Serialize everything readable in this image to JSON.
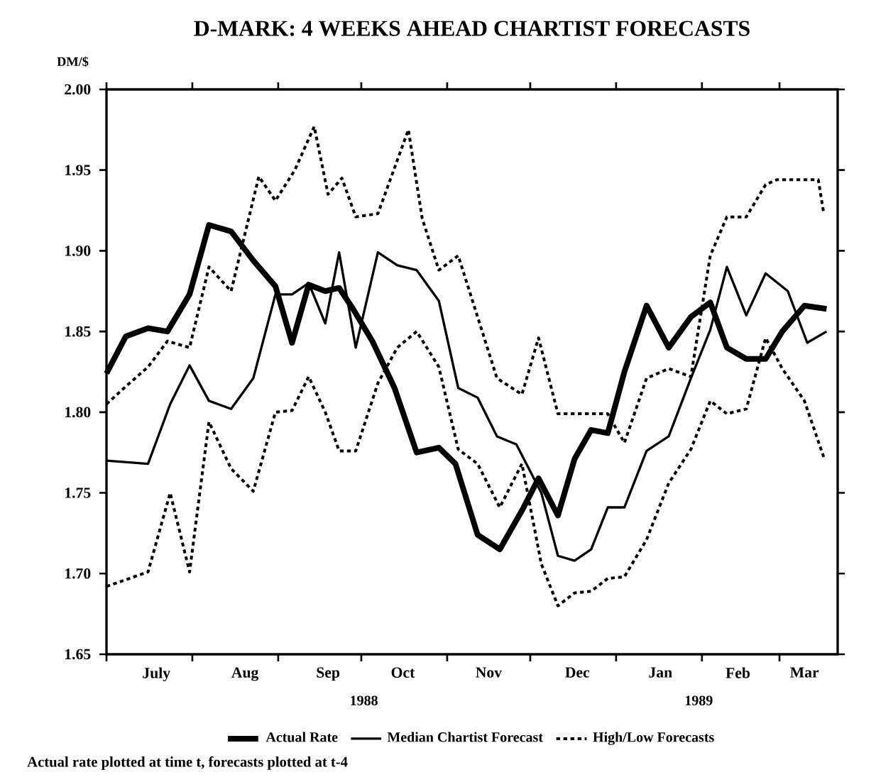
{
  "chart_data": {
    "type": "line",
    "title": "D-MARK: 4 WEEKS AHEAD CHARTIST FORECASTS",
    "ylabel": "DM/$",
    "annotations": [
      "1988",
      "1989",
      "Actual rate plotted at time t, forecasts plotted at t-4"
    ],
    "xlim": [
      "1988-07-01",
      "1989-03-22"
    ],
    "ylim": [
      1.65,
      2.0
    ],
    "xticks": [
      {
        "value": "1988-07-01",
        "label": null
      },
      {
        "value": "1988-07-19",
        "label": "July"
      },
      {
        "value": "1988-08-01",
        "label": null
      },
      {
        "value": "1988-08-20",
        "label": "Aug"
      },
      {
        "value": "1988-09-01",
        "label": null
      },
      {
        "value": "1988-09-19",
        "label": "Sep"
      },
      {
        "value": "1988-10-01",
        "label": null
      },
      {
        "value": "1988-10-16",
        "label": "Oct"
      },
      {
        "value": "1988-11-01",
        "label": null
      },
      {
        "value": "1988-11-16",
        "label": "Nov"
      },
      {
        "value": "1988-12-01",
        "label": null
      },
      {
        "value": "1988-12-18",
        "label": "Dec"
      },
      {
        "value": "1989-01-01",
        "label": null
      },
      {
        "value": "1989-01-17",
        "label": "Jan"
      },
      {
        "value": "1989-02-01",
        "label": null
      },
      {
        "value": "1989-02-14",
        "label": "Feb"
      },
      {
        "value": "1989-03-01",
        "label": null
      },
      {
        "value": "1989-03-10",
        "label": "Mar"
      }
    ],
    "yticks": [
      {
        "value": 1.65,
        "label": "1.65"
      },
      {
        "value": 1.7,
        "label": "1.70"
      },
      {
        "value": 1.75,
        "label": "1.75"
      },
      {
        "value": 1.8,
        "label": "1.80"
      },
      {
        "value": 1.85,
        "label": "1.85"
      },
      {
        "value": 1.9,
        "label": "1.90"
      },
      {
        "value": 1.95,
        "label": "1.95"
      },
      {
        "value": 2.0,
        "label": "2.00"
      }
    ],
    "legend": "bottom",
    "series": [
      {
        "name": "Actual Rate",
        "color": "#000000",
        "line_style": "solid",
        "x": [
          "1988-07-01",
          "1988-07-08",
          "1988-07-16",
          "1988-07-23",
          "1988-07-31",
          "1988-08-07",
          "1988-08-15",
          "1988-08-23",
          "1988-08-31",
          "1988-09-06",
          "1988-09-12",
          "1988-09-18",
          "1988-09-23",
          "1988-09-28",
          "1988-10-05",
          "1988-10-13",
          "1988-10-21",
          "1988-10-29",
          "1988-11-04",
          "1988-11-12",
          "1988-11-20",
          "1988-11-28",
          "1988-12-04",
          "1988-12-11",
          "1988-12-17",
          "1988-12-23",
          "1988-12-29",
          "1989-01-04",
          "1989-01-12",
          "1989-01-20",
          "1989-01-28",
          "1989-02-04",
          "1989-02-10",
          "1989-02-17",
          "1989-02-24",
          "1989-03-02",
          "1989-03-10",
          "1989-03-18"
        ],
        "values": [
          1.824,
          1.847,
          1.852,
          1.85,
          1.873,
          1.916,
          1.912,
          1.894,
          1.878,
          1.843,
          1.879,
          1.875,
          1.877,
          1.864,
          1.844,
          1.815,
          1.775,
          1.778,
          1.768,
          1.724,
          1.715,
          1.739,
          1.759,
          1.736,
          1.771,
          1.789,
          1.787,
          1.825,
          1.866,
          1.84,
          1.859,
          1.868,
          1.84,
          1.833,
          1.833,
          1.85,
          1.866,
          1.864
        ]
      },
      {
        "name": "Median Chartist Forecast",
        "color": "#000000",
        "line_style": "solid",
        "x": [
          "1988-07-01",
          "1988-07-16",
          "1988-07-24",
          "1988-07-31",
          "1988-08-07",
          "1988-08-15",
          "1988-08-23",
          "1988-08-31",
          "1988-09-06",
          "1988-09-12",
          "1988-09-18",
          "1988-09-23",
          "1988-09-29",
          "1988-10-07",
          "1988-10-14",
          "1988-10-21",
          "1988-10-29",
          "1988-11-05",
          "1988-11-12",
          "1988-11-19",
          "1988-11-26",
          "1988-12-05",
          "1988-12-11",
          "1988-12-17",
          "1988-12-23",
          "1988-12-29",
          "1989-01-04",
          "1989-01-12",
          "1989-01-20",
          "1989-01-28",
          "1989-02-04",
          "1989-02-10",
          "1989-02-17",
          "1989-02-24",
          "1989-03-04",
          "1989-03-11",
          "1989-03-18"
        ],
        "values": [
          1.77,
          1.768,
          1.805,
          1.829,
          1.807,
          1.802,
          1.821,
          1.873,
          1.873,
          1.88,
          1.855,
          1.899,
          1.84,
          1.899,
          1.891,
          1.888,
          1.869,
          1.815,
          1.809,
          1.785,
          1.78,
          1.75,
          1.711,
          1.708,
          1.715,
          1.741,
          1.741,
          1.776,
          1.785,
          1.821,
          1.851,
          1.89,
          1.86,
          1.886,
          1.875,
          1.843,
          1.85
        ]
      },
      {
        "name": "High/Low Forecasts",
        "color": "#000000",
        "line_style": "dotted",
        "x": [
          "1988-07-01",
          "1988-07-08",
          "1988-07-16",
          "1988-07-23",
          "1988-07-31",
          "1988-08-07",
          "1988-08-15",
          "1988-08-25",
          "1988-08-31",
          "1988-09-07",
          "1988-09-14",
          "1988-09-19",
          "1988-09-24",
          "1988-09-29",
          "1988-10-07",
          "1988-10-18",
          "1988-10-23",
          "1988-10-29",
          "1988-11-05",
          "1988-11-12",
          "1988-11-19",
          "1988-11-28",
          "1988-12-04",
          "1988-12-11",
          "1988-12-18",
          "1988-12-29",
          "1989-01-04",
          "1989-01-12",
          "1989-01-20",
          "1989-01-28",
          "1989-02-04",
          "1989-02-10",
          "1989-02-17",
          "1989-02-24",
          "1989-02-28",
          "1989-03-15",
          "1989-03-17"
        ],
        "values": [
          1.805,
          1.816,
          1.828,
          1.844,
          1.84,
          1.89,
          1.875,
          1.946,
          1.931,
          1.95,
          1.977,
          1.935,
          1.945,
          1.921,
          1.923,
          1.975,
          1.92,
          1.888,
          1.897,
          1.859,
          1.821,
          1.811,
          1.846,
          1.799,
          1.799,
          1.799,
          1.781,
          1.821,
          1.827,
          1.822,
          1.897,
          1.921,
          1.921,
          1.941,
          1.944,
          1.944,
          1.923
        ]
      },
      {
        "color": "#000000",
        "line_style": "dotted",
        "x": [
          "1988-07-01",
          "1988-07-16",
          "1988-07-24",
          "1988-07-31",
          "1988-08-07",
          "1988-08-15",
          "1988-08-23",
          "1988-08-31",
          "1988-09-06",
          "1988-09-12",
          "1988-09-18",
          "1988-09-23",
          "1988-09-29",
          "1988-10-07",
          "1988-10-14",
          "1988-10-21",
          "1988-10-29",
          "1988-11-05",
          "1988-11-12",
          "1988-11-20",
          "1988-11-28",
          "1988-12-05",
          "1988-12-11",
          "1988-12-17",
          "1988-12-23",
          "1988-12-29",
          "1989-01-04",
          "1989-01-12",
          "1989-01-20",
          "1989-01-28",
          "1989-02-04",
          "1989-02-10",
          "1989-02-17",
          "1989-02-24",
          "1989-03-02",
          "1989-03-10",
          "1989-03-17"
        ],
        "values": [
          1.692,
          1.701,
          1.75,
          1.701,
          1.794,
          1.765,
          1.751,
          1.8,
          1.801,
          1.822,
          1.8,
          1.776,
          1.776,
          1.818,
          1.84,
          1.85,
          1.828,
          1.777,
          1.768,
          1.741,
          1.768,
          1.706,
          1.68,
          1.688,
          1.689,
          1.697,
          1.698,
          1.721,
          1.756,
          1.777,
          1.807,
          1.799,
          1.802,
          1.846,
          1.827,
          1.807,
          1.772
        ]
      }
    ]
  }
}
